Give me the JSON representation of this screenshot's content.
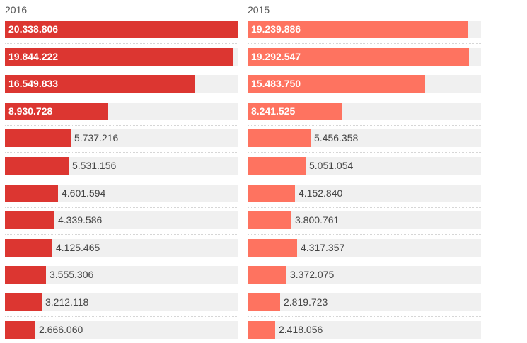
{
  "chart_data": {
    "type": "bar",
    "orientation": "horizontal",
    "max": 20338806,
    "panels": [
      {
        "title": "2016",
        "color": "#dc3631",
        "values": [
          20338806,
          19844222,
          16549833,
          8930728,
          5737216,
          5531156,
          4601594,
          4339586,
          4125465,
          3555306,
          3212118,
          2666060
        ],
        "labels": [
          "20.338.806",
          "19.844.222",
          "16.549.833",
          "8.930.728",
          "5.737.216",
          "5.531.156",
          "4.601.594",
          "4.339.586",
          "4.125.465",
          "3.555.306",
          "3.212.118",
          "2.666.060"
        ]
      },
      {
        "title": "2015",
        "color": "#fe7360",
        "values": [
          19239886,
          19292547,
          15483750,
          8241525,
          5456358,
          5051054,
          4152840,
          3800761,
          4317357,
          3372075,
          2819723,
          2418056
        ],
        "labels": [
          "19.239.886",
          "19.292.547",
          "15.483.750",
          "8.241.525",
          "5.456.358",
          "5.051.054",
          "4.152.840",
          "3.800.761",
          "4.317.357",
          "3.372.075",
          "2.819.723",
          "2.418.056"
        ]
      }
    ]
  }
}
